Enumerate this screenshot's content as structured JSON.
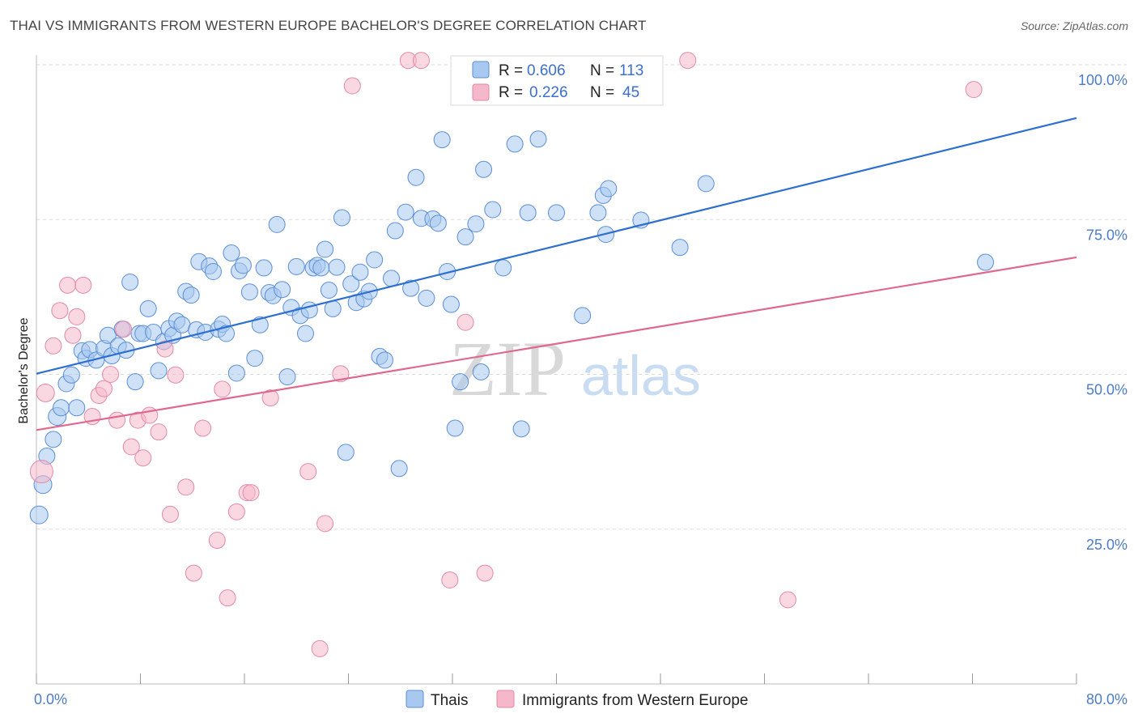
{
  "title": "THAI VS IMMIGRANTS FROM WESTERN EUROPE BACHELOR'S DEGREE CORRELATION CHART",
  "source": "Source: ZipAtlas.com",
  "watermark": {
    "zip": "ZIP",
    "atlas": "atlas"
  },
  "legend_stats": [
    {
      "r_label": "R =",
      "r_value": "0.606",
      "n_label": "N =",
      "n_value": "113",
      "color": "#a8c8f0"
    },
    {
      "r_label": "R =",
      "r_value": "0.226",
      "n_label": "N =",
      "n_value": "45",
      "color": "#f5b8cb"
    }
  ],
  "chart_data": {
    "type": "scatter",
    "title": "THAI VS IMMIGRANTS FROM WESTERN EUROPE BACHELOR'S DEGREE CORRELATION CHART",
    "xlabel": "",
    "ylabel": "Bachelor's Degree",
    "xlim": [
      0,
      80
    ],
    "ylim": [
      0,
      100
    ],
    "x_tick_labels": [
      "0.0%",
      "80.0%"
    ],
    "y_ticks": [
      25,
      50,
      75,
      100
    ],
    "y_tick_labels": [
      "25.0%",
      "50.0%",
      "75.0%",
      "100.0%"
    ],
    "legend": [
      "Thais",
      "Immigrants from Western Europe"
    ],
    "series": [
      {
        "name": "Thais",
        "color": "#a8c8f0",
        "stroke": "#5b8ed6",
        "trend": {
          "x": [
            0,
            80
          ],
          "y": [
            50.1,
            91.4
          ],
          "color": "#2d6fd0"
        },
        "points": [
          [
            0.2,
            27.3,
            1
          ],
          [
            0.5,
            32.2,
            1
          ],
          [
            0.8,
            36.8,
            0
          ],
          [
            1.3,
            39.5,
            0
          ],
          [
            1.6,
            43.2,
            1
          ],
          [
            1.9,
            44.6,
            0
          ],
          [
            2.3,
            48.5,
            0
          ],
          [
            2.7,
            49.9,
            0
          ],
          [
            3.1,
            44.6,
            0
          ],
          [
            3.5,
            53.8,
            0
          ],
          [
            3.8,
            52.6,
            0
          ],
          [
            4.1,
            54.0,
            0
          ],
          [
            4.6,
            52.3,
            0
          ],
          [
            5.2,
            54.2,
            0
          ],
          [
            5.5,
            56.3,
            0
          ],
          [
            5.8,
            53.0,
            0
          ],
          [
            6.3,
            54.6,
            0
          ],
          [
            6.6,
            57.3,
            0
          ],
          [
            6.9,
            53.9,
            0
          ],
          [
            7.2,
            64.9,
            0
          ],
          [
            7.6,
            48.8,
            0
          ],
          [
            7.9,
            56.6,
            0
          ],
          [
            8.2,
            56.6,
            0
          ],
          [
            8.6,
            60.6,
            0
          ],
          [
            9.0,
            56.8,
            0
          ],
          [
            9.4,
            50.6,
            0
          ],
          [
            9.8,
            55.3,
            0
          ],
          [
            10.2,
            57.4,
            0
          ],
          [
            10.5,
            56.3,
            0
          ],
          [
            10.8,
            58.6,
            0
          ],
          [
            11.2,
            58.0,
            0
          ],
          [
            11.5,
            63.4,
            0
          ],
          [
            11.9,
            62.8,
            0
          ],
          [
            12.3,
            57.2,
            0
          ],
          [
            12.5,
            68.2,
            0
          ],
          [
            13.0,
            56.8,
            0
          ],
          [
            13.3,
            67.5,
            0
          ],
          [
            13.6,
            66.6,
            0
          ],
          [
            14.0,
            57.3,
            0
          ],
          [
            14.3,
            58.1,
            0
          ],
          [
            14.6,
            56.6,
            0
          ],
          [
            15.0,
            69.6,
            0
          ],
          [
            15.4,
            50.2,
            0
          ],
          [
            15.6,
            66.7,
            0
          ],
          [
            15.9,
            67.6,
            0
          ],
          [
            16.4,
            63.3,
            0
          ],
          [
            16.8,
            52.6,
            0
          ],
          [
            17.2,
            58.0,
            0
          ],
          [
            17.5,
            67.2,
            0
          ],
          [
            17.9,
            63.2,
            0
          ],
          [
            18.2,
            62.7,
            0
          ],
          [
            18.5,
            74.2,
            0
          ],
          [
            18.9,
            63.7,
            0
          ],
          [
            19.3,
            49.6,
            0
          ],
          [
            19.6,
            60.8,
            0
          ],
          [
            20.0,
            67.4,
            0
          ],
          [
            20.3,
            59.5,
            0
          ],
          [
            20.7,
            56.6,
            0
          ],
          [
            21.0,
            60.4,
            0
          ],
          [
            21.3,
            67.2,
            0
          ],
          [
            21.6,
            67.6,
            0
          ],
          [
            21.9,
            67.2,
            0
          ],
          [
            22.2,
            70.2,
            0
          ],
          [
            22.5,
            63.6,
            0
          ],
          [
            22.8,
            60.6,
            0
          ],
          [
            23.1,
            67.3,
            0
          ],
          [
            23.5,
            75.3,
            0
          ],
          [
            23.8,
            37.4,
            0
          ],
          [
            24.2,
            64.6,
            0
          ],
          [
            24.6,
            61.6,
            0
          ],
          [
            24.9,
            66.5,
            0
          ],
          [
            25.2,
            62.2,
            0
          ],
          [
            25.6,
            63.4,
            0
          ],
          [
            26.0,
            68.5,
            0
          ],
          [
            26.4,
            52.9,
            0
          ],
          [
            26.8,
            52.3,
            0
          ],
          [
            27.3,
            65.5,
            0
          ],
          [
            27.6,
            73.2,
            0
          ],
          [
            27.9,
            34.8,
            0
          ],
          [
            28.4,
            76.2,
            0
          ],
          [
            28.8,
            63.9,
            0
          ],
          [
            29.2,
            81.8,
            0
          ],
          [
            29.6,
            75.2,
            0
          ],
          [
            30.0,
            62.3,
            0
          ],
          [
            30.5,
            75.1,
            0
          ],
          [
            30.9,
            74.4,
            0
          ],
          [
            31.2,
            87.9,
            0
          ],
          [
            31.6,
            66.6,
            0
          ],
          [
            31.9,
            61.3,
            0
          ],
          [
            32.2,
            41.3,
            0
          ],
          [
            32.6,
            48.8,
            0
          ],
          [
            33.0,
            72.2,
            0
          ],
          [
            33.8,
            74.3,
            0
          ],
          [
            34.2,
            50.4,
            0
          ],
          [
            34.4,
            83.1,
            0
          ],
          [
            35.1,
            76.6,
            0
          ],
          [
            35.9,
            67.2,
            0
          ],
          [
            36.8,
            87.2,
            0
          ],
          [
            37.3,
            41.2,
            0
          ],
          [
            37.8,
            76.1,
            0
          ],
          [
            38.6,
            88.0,
            0
          ],
          [
            40.0,
            76.1,
            0
          ],
          [
            42.0,
            59.5,
            0
          ],
          [
            43.2,
            76.1,
            0
          ],
          [
            43.6,
            78.9,
            0
          ],
          [
            43.8,
            72.6,
            0
          ],
          [
            44.0,
            80.0,
            0
          ],
          [
            46.5,
            74.9,
            0
          ],
          [
            49.5,
            70.5,
            0
          ],
          [
            51.5,
            80.8,
            0
          ],
          [
            73.0,
            68.1,
            0
          ]
        ]
      },
      {
        "name": "Immigrants from Western Europe",
        "color": "#f5b8cb",
        "stroke": "#e389a6",
        "trend": {
          "x": [
            0,
            80
          ],
          "y": [
            41.0,
            68.9
          ],
          "color": "#e0688f"
        },
        "points": [
          [
            0.4,
            34.3,
            2
          ],
          [
            0.7,
            47.0,
            1
          ],
          [
            1.3,
            54.6,
            0
          ],
          [
            1.8,
            60.3,
            0
          ],
          [
            2.4,
            64.4,
            0
          ],
          [
            2.8,
            56.3,
            0
          ],
          [
            3.1,
            59.3,
            0
          ],
          [
            3.6,
            64.4,
            0
          ],
          [
            4.3,
            43.2,
            0
          ],
          [
            4.8,
            46.6,
            0
          ],
          [
            5.2,
            47.7,
            0
          ],
          [
            5.7,
            50.0,
            0
          ],
          [
            6.2,
            42.6,
            0
          ],
          [
            6.7,
            57.3,
            0
          ],
          [
            7.3,
            38.3,
            0
          ],
          [
            7.8,
            42.6,
            0
          ],
          [
            8.2,
            36.5,
            0
          ],
          [
            8.7,
            43.4,
            0
          ],
          [
            9.4,
            40.7,
            0
          ],
          [
            9.9,
            54.1,
            0
          ],
          [
            10.3,
            27.4,
            0
          ],
          [
            10.7,
            49.9,
            0
          ],
          [
            11.5,
            31.8,
            0
          ],
          [
            12.1,
            17.9,
            0
          ],
          [
            12.8,
            41.3,
            0
          ],
          [
            13.9,
            23.2,
            0
          ],
          [
            14.3,
            47.6,
            0
          ],
          [
            14.7,
            13.9,
            0
          ],
          [
            15.4,
            27.8,
            0
          ],
          [
            16.2,
            30.9,
            0
          ],
          [
            16.5,
            30.9,
            0
          ],
          [
            18.0,
            46.2,
            0
          ],
          [
            20.9,
            34.3,
            0
          ],
          [
            21.8,
            5.7,
            0
          ],
          [
            22.2,
            25.9,
            0
          ],
          [
            23.4,
            50.1,
            0
          ],
          [
            24.3,
            96.6,
            0
          ],
          [
            28.6,
            100.7,
            0
          ],
          [
            29.6,
            100.7,
            0
          ],
          [
            31.8,
            16.8,
            0
          ],
          [
            33.0,
            58.4,
            0
          ],
          [
            34.5,
            17.9,
            0
          ],
          [
            50.1,
            100.7,
            0
          ],
          [
            57.8,
            13.6,
            0
          ],
          [
            72.1,
            96.0,
            0
          ]
        ]
      }
    ]
  }
}
